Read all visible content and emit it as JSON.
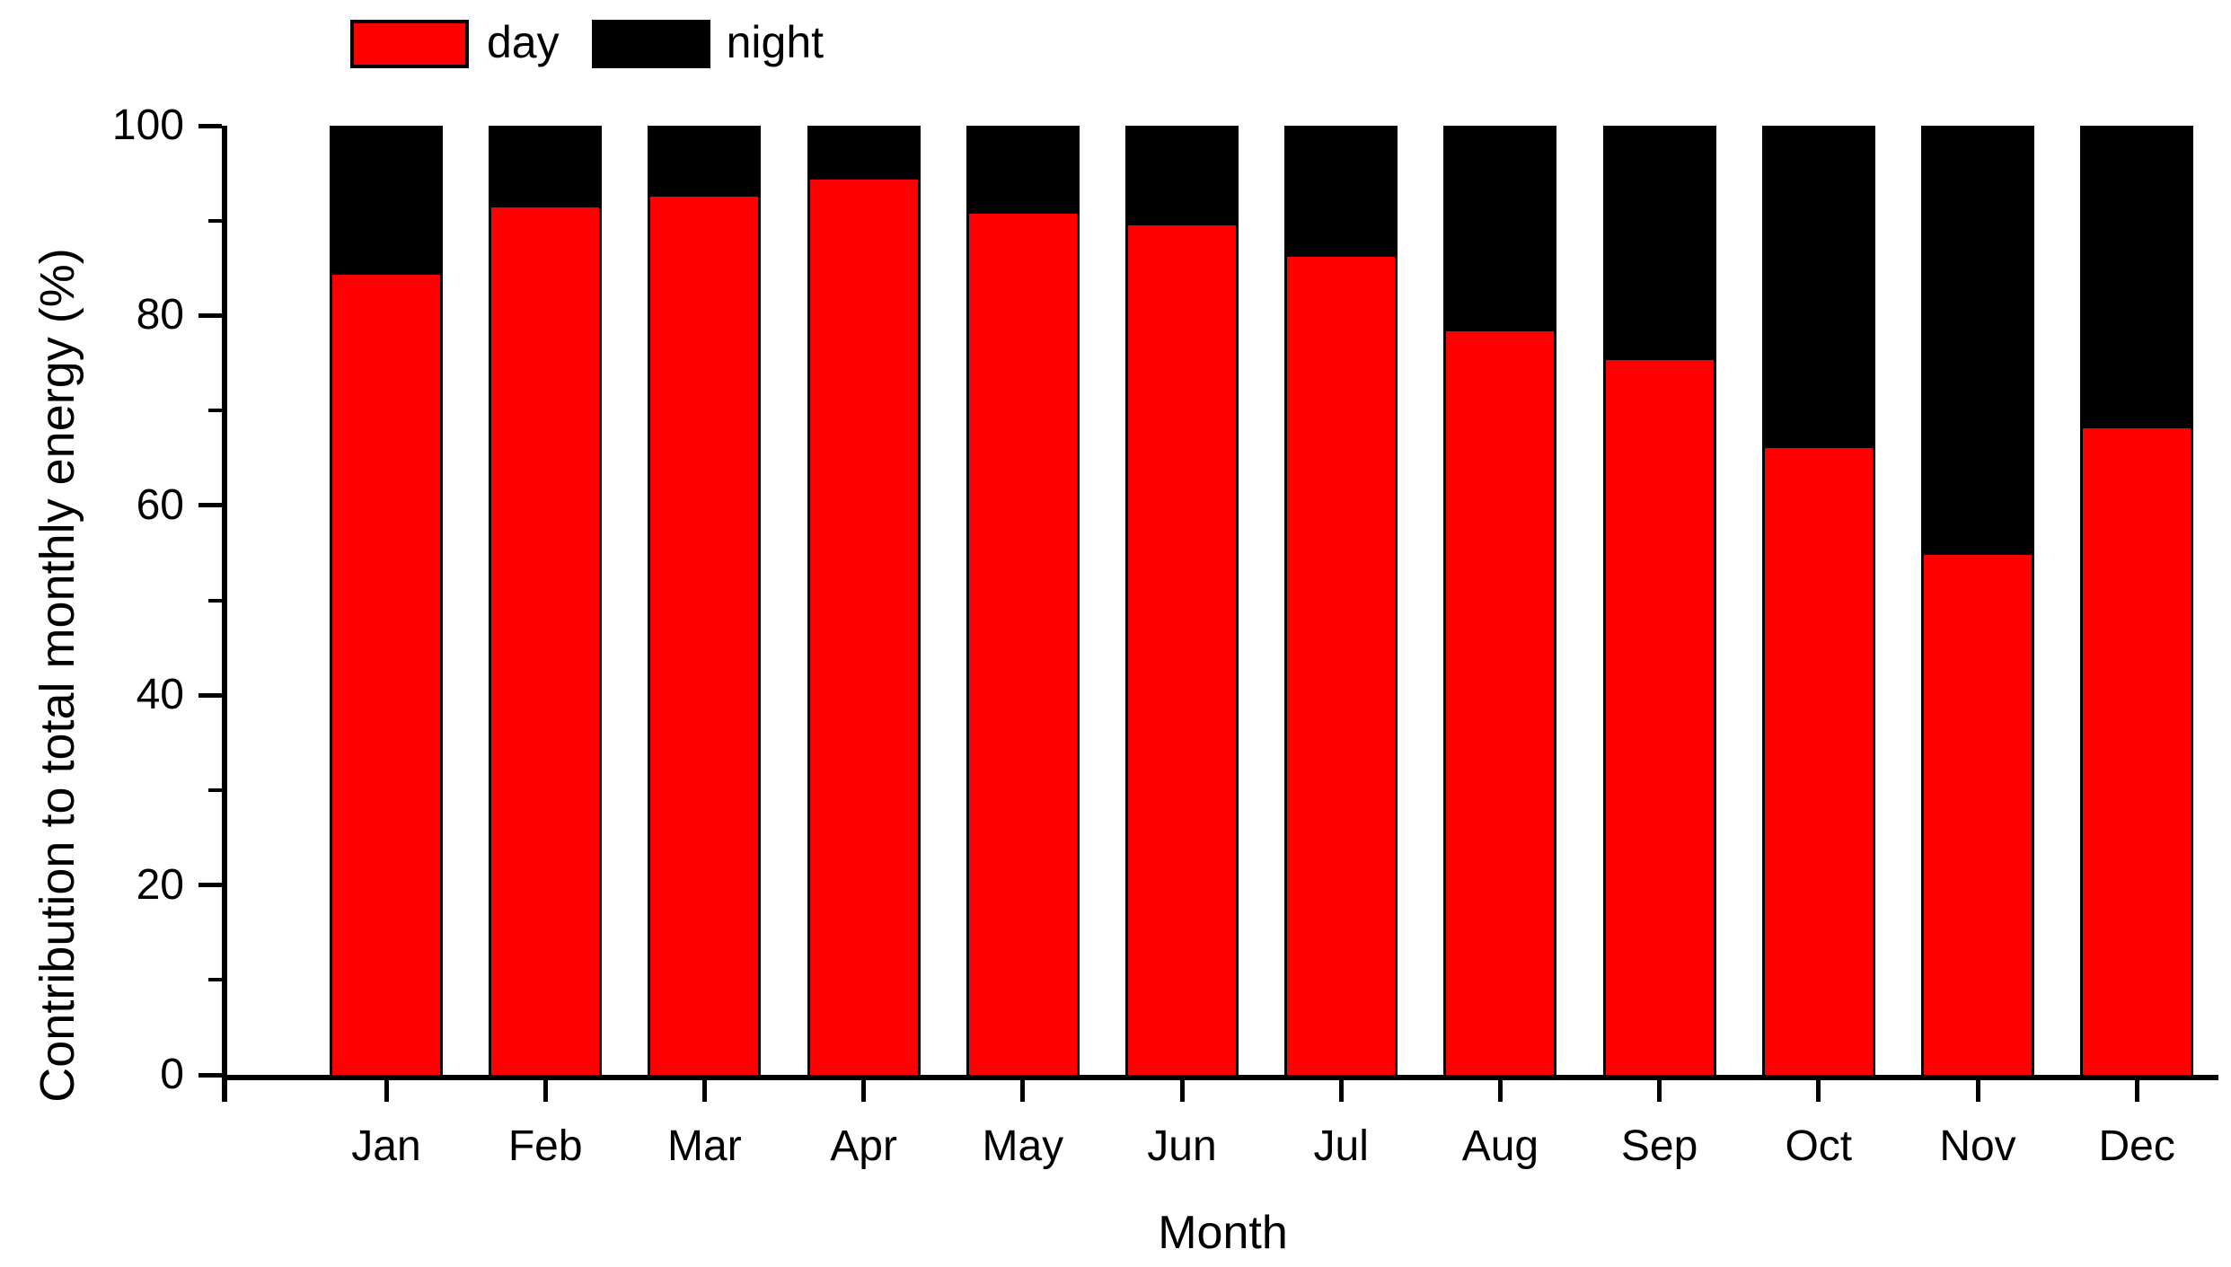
{
  "chart_data": {
    "type": "bar",
    "stacked": true,
    "orientation": "vertical",
    "categories": [
      "Jan",
      "Feb",
      "Mar",
      "Apr",
      "May",
      "Jun",
      "Jul",
      "Aug",
      "Sep",
      "Oct",
      "Nov",
      "Dec"
    ],
    "series": [
      {
        "name": "day",
        "color": "#ff0000",
        "values": [
          84.8,
          91.9,
          93.1,
          94.9,
          91.2,
          90.0,
          86.7,
          78.8,
          75.7,
          66.4,
          55.1,
          68.5
        ]
      },
      {
        "name": "night",
        "color": "#000000",
        "values": [
          15.2,
          8.1,
          6.9,
          5.1,
          8.8,
          10.0,
          13.3,
          21.2,
          24.3,
          33.6,
          44.9,
          31.5
        ]
      }
    ],
    "title": "",
    "xlabel": "Month",
    "ylabel": "Contribution to total monthly energy (%)",
    "ylim": [
      0,
      100
    ],
    "yticks": [
      0,
      20,
      40,
      60,
      80,
      100
    ],
    "yticks_minor": [
      10,
      30,
      50,
      70,
      90
    ],
    "grid": false,
    "legend_position": "top",
    "axis_color": "#000000",
    "background_color": "#ffffff"
  }
}
